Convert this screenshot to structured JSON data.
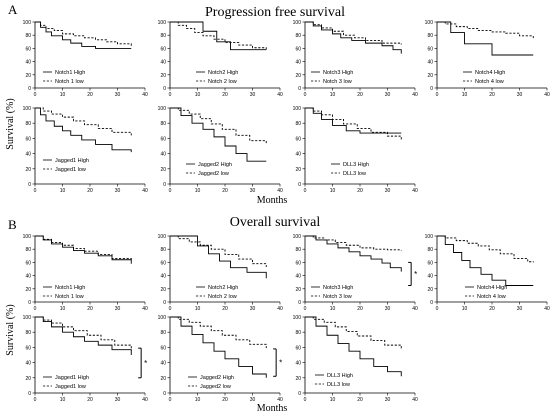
{
  "figure": {
    "panel_a_letter": "A",
    "panel_b_letter": "B",
    "section_a_title": "Progression free survival",
    "section_b_title": "Overall survival",
    "ylabel": "Survival (%)",
    "xlabel": "Months"
  },
  "axis": {
    "x_ticks": [
      "0",
      "10",
      "20",
      "30",
      "40"
    ],
    "y_ticks": [
      "0",
      "20",
      "40",
      "60",
      "80",
      "100"
    ],
    "xlim": [
      0,
      40
    ],
    "ylim": [
      0,
      100
    ]
  },
  "chart_data": [
    {
      "type": "line",
      "section": "Progression free survival",
      "series": [
        {
          "name": "Notch1 High",
          "style": "solid",
          "x": [
            0,
            2,
            4,
            6,
            10,
            13,
            17,
            22,
            26,
            35
          ],
          "y": [
            100,
            92,
            85,
            79,
            73,
            68,
            63,
            60,
            60,
            60
          ]
        },
        {
          "name": "Notch 1 low",
          "style": "dashed",
          "x": [
            0,
            2,
            4,
            7,
            10,
            14,
            18,
            22,
            26,
            30,
            35
          ],
          "y": [
            100,
            95,
            90,
            87,
            82,
            79,
            76,
            73,
            70,
            67,
            64
          ]
        }
      ]
    },
    {
      "type": "line",
      "section": "Progression free survival",
      "series": [
        {
          "name": "Notch2 High",
          "style": "solid",
          "x": [
            0,
            9,
            12,
            17,
            22,
            35
          ],
          "y": [
            100,
            100,
            86,
            70,
            58,
            58
          ]
        },
        {
          "name": "Notch 2 low",
          "style": "dashed",
          "x": [
            0,
            3,
            6,
            9,
            12,
            16,
            20,
            25,
            30,
            35
          ],
          "y": [
            100,
            95,
            90,
            84,
            79,
            74,
            69,
            65,
            61,
            58
          ]
        }
      ]
    },
    {
      "type": "line",
      "section": "Progression free survival",
      "series": [
        {
          "name": "Notch3 High",
          "style": "solid",
          "x": [
            0,
            3,
            6,
            10,
            13,
            17,
            22,
            28,
            32,
            35
          ],
          "y": [
            100,
            94,
            88,
            82,
            76,
            72,
            68,
            64,
            58,
            52
          ]
        },
        {
          "name": "Notch 3 low",
          "style": "dashed",
          "x": [
            0,
            3,
            6,
            10,
            14,
            18,
            22,
            28,
            35
          ],
          "y": [
            100,
            96,
            91,
            86,
            80,
            76,
            72,
            68,
            66
          ]
        }
      ]
    },
    {
      "type": "line",
      "section": "Progression free survival",
      "series": [
        {
          "name": "Notch4 High",
          "style": "solid",
          "x": [
            0,
            5,
            10,
            20,
            35
          ],
          "y": [
            100,
            84,
            67,
            50,
            50
          ]
        },
        {
          "name": "Notch 4 low",
          "style": "dashed",
          "x": [
            0,
            3,
            7,
            11,
            15,
            20,
            25,
            30,
            35
          ],
          "y": [
            100,
            97,
            93,
            90,
            87,
            85,
            83,
            79,
            74
          ]
        }
      ]
    },
    {
      "type": "line",
      "section": "Progression free survival",
      "series": [
        {
          "name": "Jagged1 High",
          "style": "solid",
          "x": [
            0,
            2,
            4,
            7,
            10,
            13,
            17,
            22,
            28,
            35
          ],
          "y": [
            100,
            91,
            83,
            76,
            70,
            64,
            58,
            52,
            45,
            42
          ]
        },
        {
          "name": "Jagged1 low",
          "style": "dashed",
          "x": [
            0,
            3,
            6,
            10,
            14,
            18,
            23,
            28,
            35
          ],
          "y": [
            100,
            96,
            92,
            88,
            83,
            78,
            73,
            68,
            64
          ]
        }
      ]
    },
    {
      "type": "line",
      "section": "Progression free survival",
      "series": [
        {
          "name": "Jagged2 High",
          "style": "solid",
          "x": [
            0,
            4,
            8,
            12,
            16,
            20,
            24,
            28,
            35
          ],
          "y": [
            100,
            90,
            80,
            72,
            62,
            50,
            40,
            30,
            30
          ]
        },
        {
          "name": "Jagged2 low",
          "style": "dashed",
          "x": [
            0,
            3,
            7,
            11,
            15,
            19,
            24,
            29,
            35
          ],
          "y": [
            100,
            97,
            92,
            86,
            79,
            72,
            64,
            57,
            52
          ]
        }
      ]
    },
    {
      "type": "line",
      "section": "Progression free survival",
      "series": [
        {
          "name": "DLL3 High",
          "style": "solid",
          "x": [
            0,
            3,
            6,
            10,
            15,
            20,
            28,
            35
          ],
          "y": [
            100,
            93,
            85,
            77,
            70,
            67,
            67,
            67
          ]
        },
        {
          "name": "DLL3 low",
          "style": "dashed",
          "x": [
            0,
            3,
            6,
            10,
            14,
            19,
            24,
            30,
            35
          ],
          "y": [
            100,
            96,
            91,
            85,
            79,
            73,
            68,
            63,
            58
          ]
        }
      ]
    },
    {
      "type": "line",
      "section": "Overall survival",
      "series": [
        {
          "name": "Notch1 High",
          "style": "solid",
          "x": [
            0,
            3,
            6,
            10,
            14,
            18,
            23,
            28,
            35
          ],
          "y": [
            100,
            94,
            88,
            83,
            78,
            74,
            70,
            64,
            58
          ]
        },
        {
          "name": "Notch 1 low",
          "style": "dashed",
          "x": [
            0,
            3,
            6,
            10,
            14,
            18,
            23,
            28,
            35
          ],
          "y": [
            100,
            95,
            90,
            86,
            81,
            77,
            72,
            66,
            62
          ]
        }
      ]
    },
    {
      "type": "line",
      "section": "Overall survival",
      "series": [
        {
          "name": "Notch2 High",
          "style": "solid",
          "x": [
            0,
            7,
            10,
            14,
            18,
            22,
            28,
            35
          ],
          "y": [
            100,
            100,
            85,
            73,
            62,
            52,
            45,
            36
          ]
        },
        {
          "name": "Notch 2 low",
          "style": "dashed",
          "x": [
            0,
            3,
            7,
            11,
            15,
            20,
            25,
            30,
            35
          ],
          "y": [
            100,
            96,
            91,
            86,
            80,
            72,
            65,
            58,
            53
          ]
        }
      ]
    },
    {
      "type": "line",
      "section": "Overall survival",
      "series": [
        {
          "name": "Notch3 High",
          "style": "solid",
          "x": [
            0,
            4,
            8,
            12,
            16,
            20,
            24,
            28,
            31,
            35
          ],
          "y": [
            100,
            94,
            88,
            82,
            76,
            70,
            65,
            59,
            52,
            46
          ]
        },
        {
          "name": "Notch 3 low",
          "style": "dashed",
          "x": [
            0,
            3,
            7,
            11,
            15,
            20,
            25,
            30,
            35
          ],
          "y": [
            100,
            97,
            94,
            90,
            86,
            82,
            80,
            79,
            78
          ]
        }
      ]
    },
    {
      "type": "line",
      "section": "Overall survival",
      "series": [
        {
          "name": "Notch4 High",
          "style": "solid",
          "x": [
            0,
            3,
            6,
            9,
            12,
            16,
            20,
            25,
            35
          ],
          "y": [
            100,
            87,
            75,
            63,
            52,
            42,
            33,
            25,
            25
          ]
        },
        {
          "name": "Notch 4 low",
          "style": "dashed",
          "x": [
            0,
            3,
            7,
            11,
            15,
            19,
            23,
            28,
            33,
            35
          ],
          "y": [
            100,
            97,
            93,
            89,
            85,
            79,
            73,
            66,
            61,
            60
          ]
        }
      ]
    },
    {
      "type": "line",
      "section": "Overall survival",
      "series": [
        {
          "name": "Jagged1 High",
          "style": "solid",
          "x": [
            0,
            3,
            6,
            10,
            14,
            18,
            23,
            28,
            35
          ],
          "y": [
            100,
            94,
            87,
            80,
            74,
            68,
            63,
            57,
            50
          ]
        },
        {
          "name": "Jagged1 low",
          "style": "dashed",
          "x": [
            0,
            3,
            6,
            10,
            14,
            19,
            24,
            29,
            35
          ],
          "y": [
            100,
            96,
            92,
            87,
            82,
            76,
            70,
            63,
            56
          ]
        }
      ]
    },
    {
      "type": "line",
      "section": "Overall survival",
      "series": [
        {
          "name": "Jagged2 High",
          "style": "solid",
          "x": [
            0,
            4,
            8,
            12,
            16,
            20,
            25,
            30,
            35
          ],
          "y": [
            100,
            88,
            77,
            66,
            55,
            45,
            35,
            25,
            20
          ]
        },
        {
          "name": "Jagged2 low",
          "style": "dashed",
          "x": [
            0,
            3,
            7,
            11,
            15,
            19,
            24,
            29,
            35
          ],
          "y": [
            100,
            97,
            93,
            88,
            82,
            76,
            70,
            64,
            59
          ]
        }
      ]
    },
    {
      "type": "line",
      "section": "Overall survival",
      "series": [
        {
          "name": "DLL3 High",
          "style": "solid",
          "x": [
            0,
            4,
            8,
            12,
            16,
            20,
            25,
            30,
            35
          ],
          "y": [
            100,
            88,
            76,
            65,
            55,
            45,
            35,
            28,
            22
          ]
        },
        {
          "name": "DLL3 low",
          "style": "dashed",
          "x": [
            0,
            3,
            7,
            11,
            15,
            19,
            24,
            29,
            35
          ],
          "y": [
            100,
            97,
            93,
            87,
            81,
            75,
            69,
            63,
            58
          ]
        }
      ]
    }
  ],
  "significance": [
    {
      "panel": 10,
      "label": "*",
      "y_from": 25,
      "y_to": 60
    },
    {
      "panel": 12,
      "label": "*",
      "y_from": 20,
      "y_to": 59
    },
    {
      "panel": 13,
      "label": "*",
      "y_from": 22,
      "y_to": 58
    }
  ]
}
